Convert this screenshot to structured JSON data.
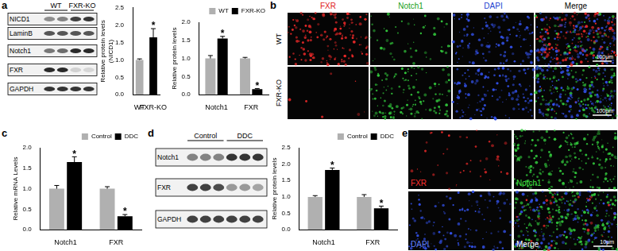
{
  "figure": {
    "a": {
      "label": "a",
      "blot": {
        "groups": [
          "WT",
          "FXR-KO"
        ],
        "rows": [
          "NICD1",
          "LaminB",
          "Notch1",
          "FXR",
          "GAPDH"
        ]
      }
    },
    "b": {
      "label": "b",
      "columns": [
        "FXR",
        "Notch1",
        "DAPI",
        "Merge"
      ],
      "rows": [
        "WT",
        "FXR-KO"
      ],
      "scale_bar": "100μm"
    },
    "c": {
      "label": "c"
    },
    "d": {
      "label": "d",
      "blot": {
        "groups": [
          "Control",
          "DDC"
        ],
        "rows": [
          "Notch1",
          "FXR",
          "GAPDH"
        ]
      }
    },
    "e": {
      "label": "e",
      "channels": [
        "FXR",
        "Notch1",
        "DAPI",
        "Merge"
      ],
      "scale_bar": "10μm"
    }
  },
  "chart_data": [
    {
      "type": "bar",
      "y_label": [
        "Relative protein levels",
        "(NICD1)"
      ],
      "categories": [
        "WT",
        "FXR-KO"
      ],
      "values": [
        1.0,
        1.65
      ],
      "errors": [
        0.03,
        0.25
      ],
      "marks": [
        null,
        "*"
      ],
      "colors": [
        "#b0b0b0",
        "#000000"
      ],
      "ylim": [
        0,
        2.5
      ],
      "yticks": [
        {
          "value": 0,
          "label": "0.0"
        },
        0.5,
        {
          "value": 1,
          "label": "1.0"
        },
        1.5,
        {
          "value": 2,
          "label": "2.0"
        },
        2.5
      ],
      "grid": false
    },
    {
      "type": "bar",
      "y_label": [
        "Relative protein levels"
      ],
      "categories": [
        "Notch1",
        "FXR"
      ],
      "series": [
        {
          "name": "WT",
          "color": "#b0b0b0",
          "values": [
            1.0,
            1.0
          ],
          "errors": [
            0.08,
            0.03
          ],
          "marks": [
            null,
            null
          ]
        },
        {
          "name": "FXR-KO",
          "color": "#000000",
          "values": [
            1.55,
            0.15
          ],
          "errors": [
            0.06,
            0.02
          ],
          "marks": [
            "*",
            "*"
          ]
        }
      ],
      "ylim": [
        0,
        2
      ],
      "yticks": [
        {
          "value": 0,
          "label": "0.0"
        },
        0.5,
        {
          "value": 1,
          "label": "1.0"
        },
        1.5,
        {
          "value": 2,
          "label": "2.0"
        }
      ],
      "grid": false,
      "legend": "top-right"
    },
    {
      "type": "bar",
      "y_label": [
        "Relative mRNA Levels"
      ],
      "categories": [
        "Notch1",
        "FXR"
      ],
      "series": [
        {
          "name": "Control",
          "color": "#b0b0b0",
          "values": [
            1.0,
            1.0
          ],
          "errors": [
            0.08,
            0.05
          ],
          "marks": [
            null,
            null
          ]
        },
        {
          "name": "DDC",
          "color": "#000000",
          "values": [
            1.65,
            0.33
          ],
          "errors": [
            0.13,
            0.04
          ],
          "marks": [
            "*",
            "*"
          ]
        }
      ],
      "ylim": [
        0,
        2
      ],
      "yticks": [
        {
          "value": 0,
          "label": "0.0"
        },
        0.5,
        {
          "value": 1,
          "label": "1.0"
        },
        1.5,
        {
          "value": 2,
          "label": "2.0"
        }
      ],
      "grid": false,
      "legend": "top-right"
    },
    {
      "type": "bar",
      "y_label": [
        "Relative protein levels"
      ],
      "categories": [
        "Notch1",
        "FXR"
      ],
      "series": [
        {
          "name": "Control",
          "color": "#b0b0b0",
          "values": [
            1.0,
            1.0
          ],
          "errors": [
            0.04,
            0.07
          ],
          "marks": [
            null,
            null
          ]
        },
        {
          "name": "DDC",
          "color": "#000000",
          "values": [
            1.82,
            0.65
          ],
          "errors": [
            0.06,
            0.07
          ],
          "marks": [
            "*",
            "*"
          ]
        }
      ],
      "ylim": [
        0,
        2.5
      ],
      "yticks": [
        {
          "value": 0,
          "label": "0.0"
        },
        0.5,
        {
          "value": 1,
          "label": "1.0"
        },
        1.5,
        {
          "value": 2,
          "label": "2.0"
        },
        2.5
      ],
      "grid": false,
      "legend": "top-right"
    }
  ]
}
